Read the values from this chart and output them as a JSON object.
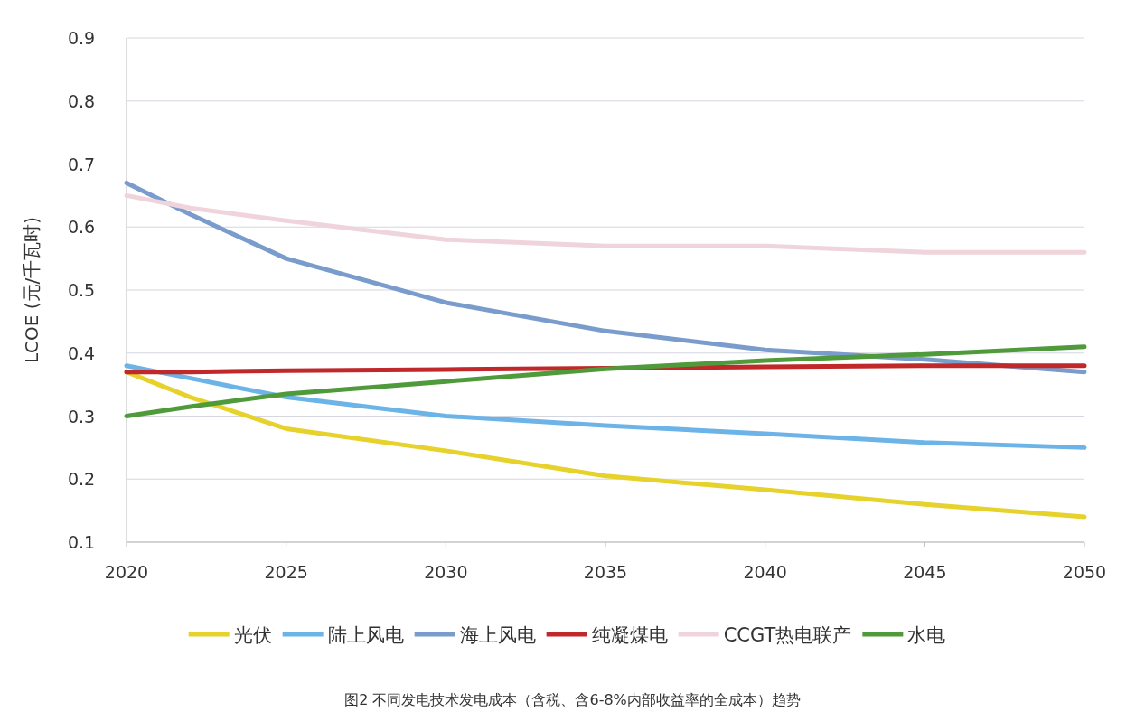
{
  "chart_data": {
    "type": "line",
    "ylabel": "LCOE (元/千瓦时)",
    "x": [
      2020,
      2022,
      2025,
      2030,
      2035,
      2040,
      2045,
      2050
    ],
    "xlim": [
      2020,
      2050
    ],
    "xticks": [
      2020,
      2025,
      2030,
      2035,
      2040,
      2045,
      2050
    ],
    "ylim": [
      0.1,
      0.9
    ],
    "yticks": [
      0.1,
      0.2,
      0.3,
      0.4,
      0.5,
      0.6,
      0.7,
      0.8,
      0.9
    ],
    "grid": "y",
    "legend": "bottom",
    "marker": "none",
    "line_style": "solid",
    "series": [
      {
        "name": "光伏",
        "color": "#e6d22a",
        "values": [
          0.37,
          0.33,
          0.28,
          0.245,
          0.205,
          0.183,
          0.16,
          0.14
        ]
      },
      {
        "name": "陆上风电",
        "color": "#6cb4e8",
        "values": [
          0.38,
          0.36,
          0.33,
          0.3,
          0.285,
          0.272,
          0.258,
          0.25
        ]
      },
      {
        "name": "海上风电",
        "color": "#7a9ccc",
        "values": [
          0.67,
          0.62,
          0.55,
          0.48,
          0.435,
          0.405,
          0.39,
          0.37
        ]
      },
      {
        "name": "纯凝煤电",
        "color": "#c0282a",
        "values": [
          0.37,
          0.37,
          0.372,
          0.374,
          0.376,
          0.378,
          0.38,
          0.38
        ]
      },
      {
        "name": "CCGT热电联产",
        "color": "#f0d4dc",
        "values": [
          0.65,
          0.63,
          0.61,
          0.58,
          0.57,
          0.57,
          0.56,
          0.56
        ]
      },
      {
        "name": "水电",
        "color": "#4f9a3a",
        "values": [
          0.3,
          0.315,
          0.335,
          0.355,
          0.375,
          0.388,
          0.398,
          0.41
        ]
      }
    ],
    "annotations": [
      "图2 不同发电技术发电成本（含税、含6-8%内部收益率的全成本）趋势"
    ]
  }
}
